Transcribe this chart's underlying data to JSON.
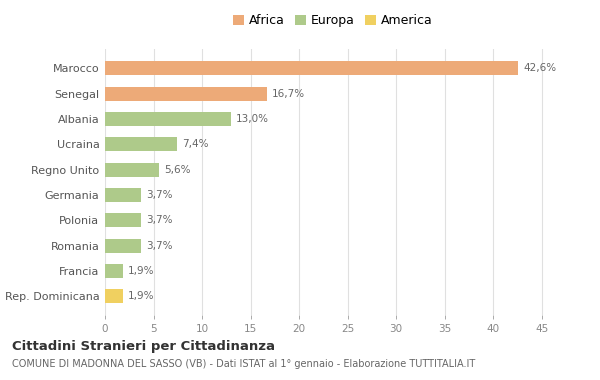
{
  "categories": [
    "Marocco",
    "Senegal",
    "Albania",
    "Ucraina",
    "Regno Unito",
    "Germania",
    "Polonia",
    "Romania",
    "Francia",
    "Rep. Dominicana"
  ],
  "values": [
    42.6,
    16.7,
    13.0,
    7.4,
    5.6,
    3.7,
    3.7,
    3.7,
    1.9,
    1.9
  ],
  "labels": [
    "42,6%",
    "16,7%",
    "13,0%",
    "7,4%",
    "5,6%",
    "3,7%",
    "3,7%",
    "3,7%",
    "1,9%",
    "1,9%"
  ],
  "colors": [
    "#EDAA78",
    "#EDAA78",
    "#AECA8A",
    "#AECA8A",
    "#AECA8A",
    "#AECA8A",
    "#AECA8A",
    "#AECA8A",
    "#AECA8A",
    "#F0D060"
  ],
  "legend_labels": [
    "Africa",
    "Europa",
    "America"
  ],
  "legend_colors": [
    "#EDAA78",
    "#AECA8A",
    "#F0D060"
  ],
  "title": "Cittadini Stranieri per Cittadinanza",
  "subtitle": "COMUNE DI MADONNA DEL SASSO (VB) - Dati ISTAT al 1° gennaio - Elaborazione TUTTITALIA.IT",
  "xlim": [
    0,
    47
  ],
  "xticks": [
    0,
    5,
    10,
    15,
    20,
    25,
    30,
    35,
    40,
    45
  ],
  "bg_color": "#FFFFFF",
  "grid_color": "#E0E0E0",
  "bar_height": 0.55
}
